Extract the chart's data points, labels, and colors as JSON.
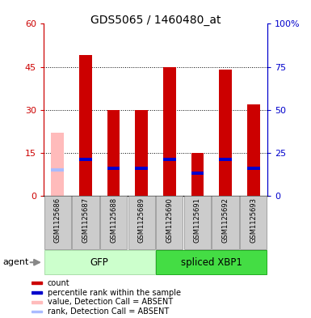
{
  "title": "GDS5065 / 1460480_at",
  "samples": [
    "GSM1125686",
    "GSM1125687",
    "GSM1125688",
    "GSM1125689",
    "GSM1125690",
    "GSM1125691",
    "GSM1125692",
    "GSM1125693"
  ],
  "count_values": [
    0,
    49,
    30,
    30,
    45,
    15,
    44,
    32
  ],
  "percentile_values": [
    15,
    21,
    16,
    16,
    21,
    13,
    21,
    16
  ],
  "absent_count": [
    22,
    0,
    0,
    0,
    0,
    0,
    0,
    0
  ],
  "absent_percentile": [
    15,
    0,
    0,
    0,
    0,
    0,
    0,
    0
  ],
  "is_absent": [
    true,
    false,
    false,
    false,
    false,
    false,
    false,
    false
  ],
  "groups": [
    {
      "label": "GFP",
      "start": 0,
      "end": 3,
      "color": "#ccffcc",
      "border_color": "#aaddaa"
    },
    {
      "label": "spliced XBP1",
      "start": 4,
      "end": 7,
      "color": "#44dd44",
      "border_color": "#22aa22"
    }
  ],
  "ylim_left": [
    0,
    60
  ],
  "ylim_right": [
    0,
    100
  ],
  "yticks_left": [
    0,
    15,
    30,
    45,
    60
  ],
  "yticks_right": [
    0,
    25,
    50,
    75,
    100
  ],
  "ytick_labels_left": [
    "0",
    "15",
    "30",
    "45",
    "60"
  ],
  "ytick_labels_right": [
    "0",
    "25",
    "50",
    "75",
    "100%"
  ],
  "bar_color_present": "#cc0000",
  "bar_color_absent": "#ffbbbb",
  "percentile_color_present": "#0000cc",
  "percentile_color_absent": "#aabbff",
  "bar_width": 0.45,
  "percentile_bar_height": 1.2,
  "plot_bg_color": "#ffffff",
  "sample_box_color": "#cccccc",
  "agent_label": "agent",
  "legend_items": [
    {
      "color": "#cc0000",
      "label": "count"
    },
    {
      "color": "#0000cc",
      "label": "percentile rank within the sample"
    },
    {
      "color": "#ffbbbb",
      "label": "value, Detection Call = ABSENT"
    },
    {
      "color": "#aabbff",
      "label": "rank, Detection Call = ABSENT"
    }
  ],
  "grid_yticks": [
    15,
    30,
    45
  ],
  "left_axis_color": "#cc0000",
  "right_axis_color": "#0000cc"
}
